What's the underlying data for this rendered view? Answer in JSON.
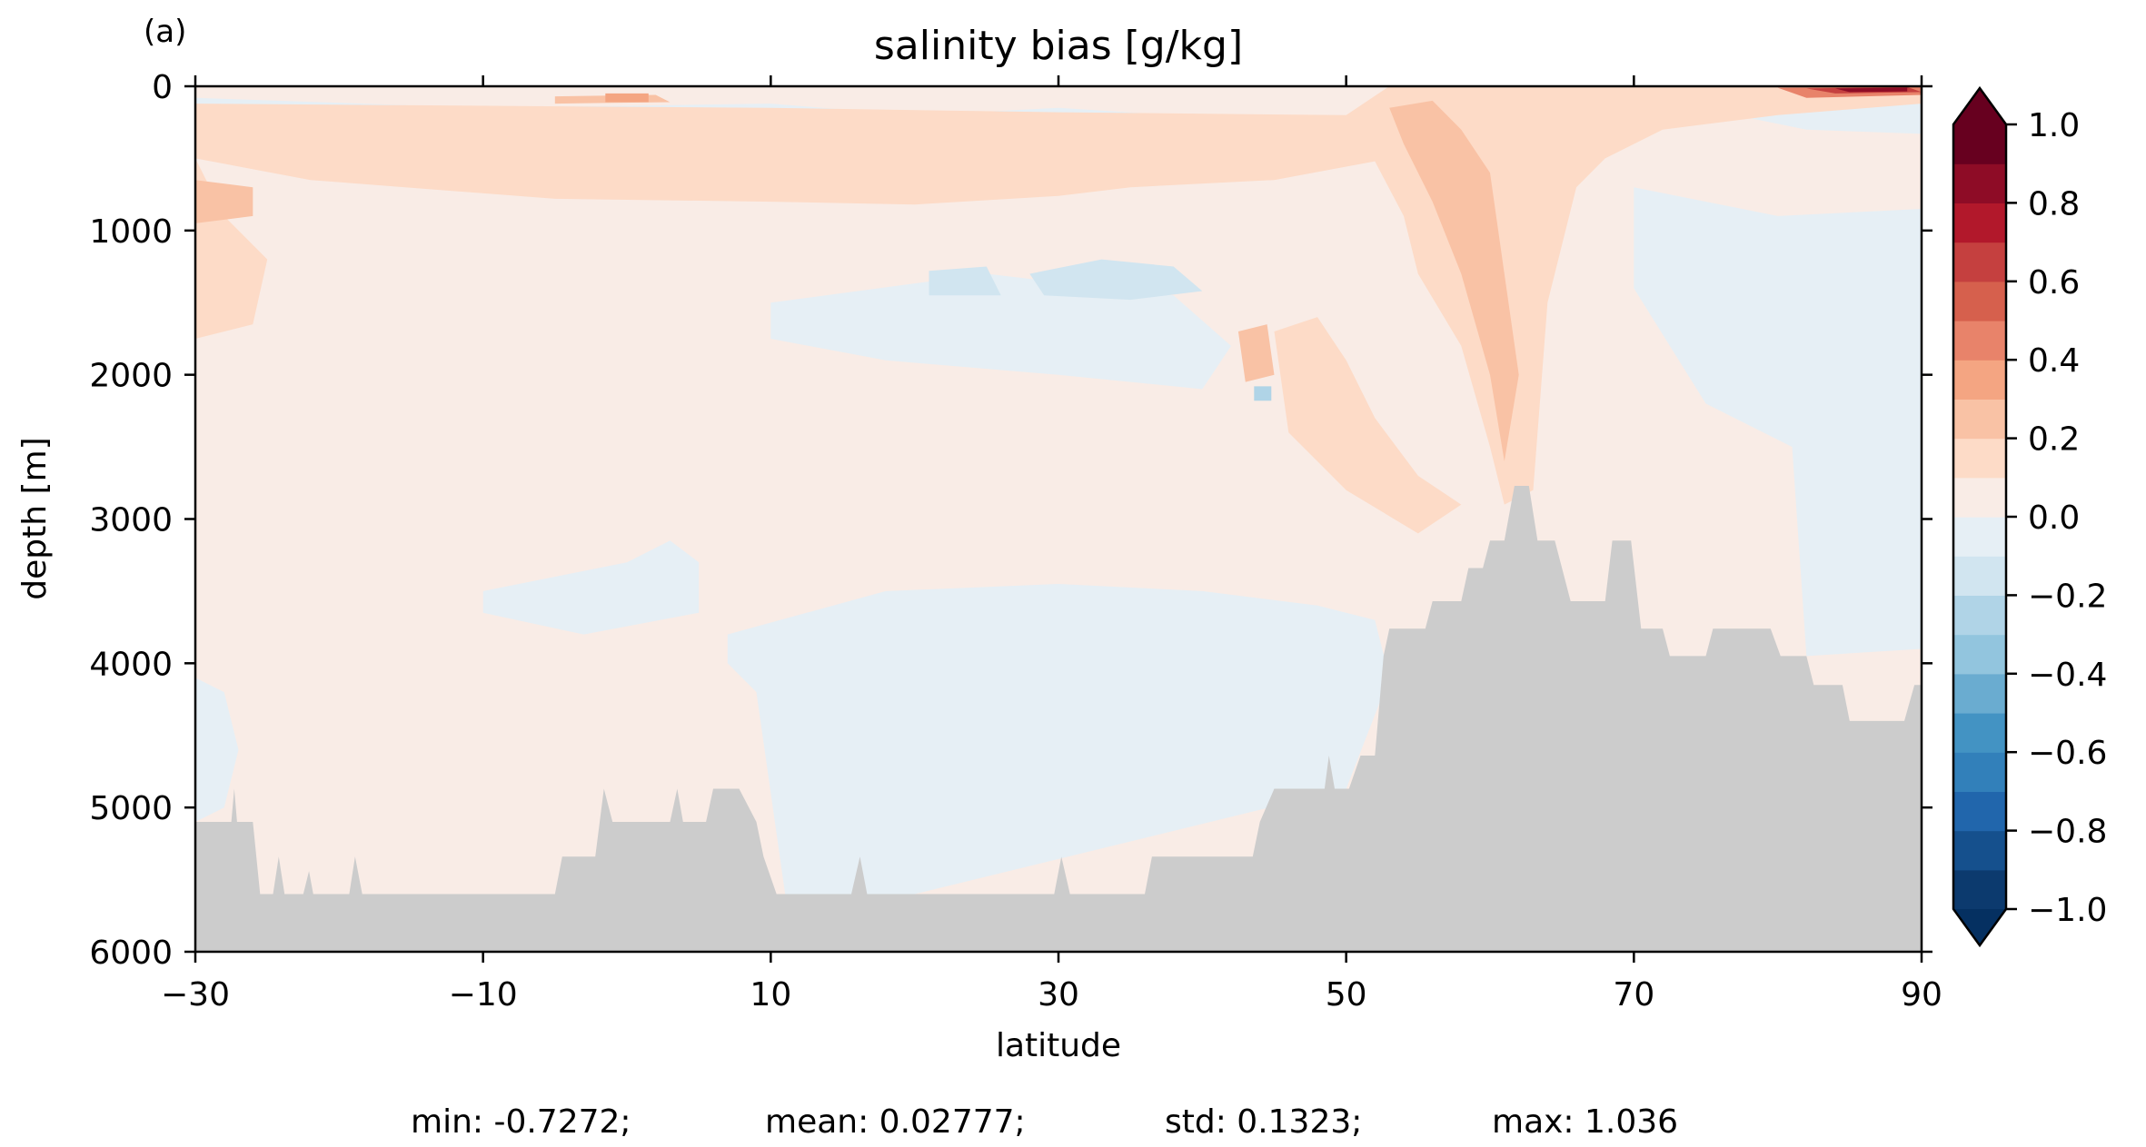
{
  "chart_data": {
    "type": "heatmap",
    "panel_label": "(a)",
    "title": "salinity bias [g/kg]",
    "xlabel": "latitude",
    "ylabel": "depth [m]",
    "xlim": [
      -30,
      90
    ],
    "ylim": [
      6000,
      0
    ],
    "x_ticks": [
      -30,
      -10,
      10,
      30,
      50,
      70,
      90
    ],
    "x_tick_labels": [
      "−30",
      "−10",
      "10",
      "30",
      "50",
      "70",
      "90"
    ],
    "y_ticks": [
      0,
      1000,
      2000,
      3000,
      4000,
      5000,
      6000
    ],
    "y_tick_labels": [
      "0",
      "1000",
      "2000",
      "3000",
      "4000",
      "5000",
      "6000"
    ],
    "colorbar": {
      "cmap": "RdBu_r",
      "extend": "both",
      "levels": [
        -1.0,
        -0.9,
        -0.8,
        -0.7,
        -0.6,
        -0.5,
        -0.4,
        -0.3,
        -0.2,
        -0.1,
        0.0,
        0.1,
        0.2,
        0.3,
        0.4,
        0.5,
        0.6,
        0.7,
        0.8,
        0.9,
        1.0
      ],
      "colors": [
        "#0c3a6e",
        "#15508d",
        "#2166ac",
        "#3280ba",
        "#4393c3",
        "#6aacd0",
        "#92c5de",
        "#b0d4e7",
        "#d1e5f0",
        "#e6eff5",
        "#f9ece6",
        "#fddbc7",
        "#f9c2a5",
        "#f4a582",
        "#e8836a",
        "#d6604d",
        "#c5403f",
        "#b2182b",
        "#8e0c26",
        "#67001f"
      ],
      "over_color": "#67001f",
      "under_color": "#053061",
      "ticks": [
        -1.0,
        -0.8,
        -0.6,
        -0.4,
        -0.2,
        0.0,
        0.2,
        0.4,
        0.6,
        0.8,
        1.0
      ],
      "tick_labels": [
        "−1.0",
        "−0.8",
        "−0.6",
        "−0.4",
        "−0.2",
        "0.0",
        "0.2",
        "0.4",
        "0.6",
        "0.8",
        "1.0"
      ]
    },
    "land_color": "#cccccc",
    "bathymetry": [
      [
        -30,
        5100
      ],
      [
        -27.5,
        5100
      ],
      [
        -27.3,
        4870
      ],
      [
        -27.1,
        5100
      ],
      [
        -26,
        5100
      ],
      [
        -25.5,
        5600
      ],
      [
        -24.6,
        5600
      ],
      [
        -24.2,
        5340
      ],
      [
        -23.8,
        5600
      ],
      [
        -22.5,
        5600
      ],
      [
        -22.1,
        5440
      ],
      [
        -21.8,
        5600
      ],
      [
        -19.3,
        5600
      ],
      [
        -18.9,
        5340
      ],
      [
        -18.4,
        5600
      ],
      [
        -5,
        5600
      ],
      [
        -4.5,
        5340
      ],
      [
        -2.2,
        5340
      ],
      [
        -1.6,
        4870
      ],
      [
        -1.0,
        5100
      ],
      [
        3.0,
        5100
      ],
      [
        3.5,
        4870
      ],
      [
        3.9,
        5100
      ],
      [
        5.5,
        5100
      ],
      [
        6.0,
        4870
      ],
      [
        7.8,
        4870
      ],
      [
        9.0,
        5100
      ],
      [
        9.5,
        5340
      ],
      [
        10.4,
        5600
      ],
      [
        15.6,
        5600
      ],
      [
        16.2,
        5340
      ],
      [
        16.7,
        5600
      ],
      [
        29.7,
        5600
      ],
      [
        30.2,
        5340
      ],
      [
        30.8,
        5600
      ],
      [
        36.0,
        5600
      ],
      [
        36.5,
        5340
      ],
      [
        43.5,
        5340
      ],
      [
        44.0,
        5100
      ],
      [
        45.0,
        4870
      ],
      [
        48.5,
        4870
      ],
      [
        48.8,
        4640
      ],
      [
        49.2,
        4870
      ],
      [
        50.2,
        4870
      ],
      [
        51.0,
        4640
      ],
      [
        52.0,
        4640
      ],
      [
        52.6,
        3950
      ],
      [
        53.0,
        3760
      ],
      [
        55.5,
        3760
      ],
      [
        56.0,
        3570
      ],
      [
        58.0,
        3570
      ],
      [
        58.5,
        3340
      ],
      [
        59.5,
        3340
      ],
      [
        60.0,
        3150
      ],
      [
        61.0,
        3150
      ],
      [
        61.7,
        2770
      ],
      [
        62.7,
        2770
      ],
      [
        63.3,
        3150
      ],
      [
        64.5,
        3150
      ],
      [
        65.0,
        3340
      ],
      [
        65.6,
        3570
      ],
      [
        68.0,
        3570
      ],
      [
        68.5,
        3150
      ],
      [
        69.8,
        3150
      ],
      [
        70.5,
        3760
      ],
      [
        72.0,
        3760
      ],
      [
        72.5,
        3950
      ],
      [
        75.0,
        3950
      ],
      [
        75.5,
        3760
      ],
      [
        79.5,
        3760
      ],
      [
        80.2,
        3950
      ],
      [
        82.0,
        3950
      ],
      [
        82.5,
        4150
      ],
      [
        84.5,
        4150
      ],
      [
        85.0,
        4400
      ],
      [
        88.8,
        4400
      ],
      [
        89.5,
        4150
      ],
      [
        90.0,
        4150
      ]
    ],
    "field_regions": [
      {
        "level": 0.05,
        "points": [
          [
            -30,
            450
          ],
          [
            -20,
            600
          ],
          [
            0,
            800
          ],
          [
            20,
            850
          ],
          [
            35,
            700
          ],
          [
            45,
            600
          ],
          [
            52,
            500
          ],
          [
            55,
            1600
          ],
          [
            53,
            2500
          ],
          [
            55,
            2900
          ],
          [
            58,
            3300
          ],
          [
            60,
            3200
          ],
          [
            62,
            2700
          ],
          [
            64,
            3000
          ],
          [
            66,
            3500
          ],
          [
            70,
            3100
          ],
          [
            74,
            3700
          ],
          [
            78,
            3600
          ],
          [
            80,
            2000
          ],
          [
            90,
            1900
          ],
          [
            90,
            6000
          ],
          [
            -30,
            6000
          ]
        ]
      },
      {
        "level": -0.05,
        "points": [
          [
            -30,
            4100
          ],
          [
            -28,
            4200
          ],
          [
            -27,
            4600
          ],
          [
            -28,
            5000
          ],
          [
            -30,
            5100
          ]
        ]
      },
      {
        "level": -0.05,
        "points": [
          [
            -10,
            3500
          ],
          [
            0,
            3300
          ],
          [
            3,
            3150
          ],
          [
            5,
            3300
          ],
          [
            5,
            3650
          ],
          [
            -3,
            3800
          ],
          [
            -10,
            3650
          ]
        ]
      },
      {
        "level": -0.05,
        "points": [
          [
            7,
            3800
          ],
          [
            18,
            3500
          ],
          [
            30,
            3450
          ],
          [
            40,
            3500
          ],
          [
            48,
            3600
          ],
          [
            52,
            3700
          ],
          [
            53,
            4100
          ],
          [
            50,
            4870
          ],
          [
            20,
            5600
          ],
          [
            11,
            5600
          ],
          [
            9,
            4200
          ],
          [
            7,
            4000
          ]
        ]
      },
      {
        "level": -0.05,
        "points": [
          [
            10,
            1500
          ],
          [
            25,
            1300
          ],
          [
            38,
            1450
          ],
          [
            42,
            1800
          ],
          [
            40,
            2100
          ],
          [
            30,
            2000
          ],
          [
            18,
            1900
          ],
          [
            10,
            1750
          ]
        ]
      },
      {
        "level": -0.05,
        "points": [
          [
            -30,
            80
          ],
          [
            -10,
            150
          ],
          [
            10,
            120
          ],
          [
            20,
            200
          ],
          [
            30,
            150
          ],
          [
            38,
            200
          ],
          [
            42,
            380
          ],
          [
            30,
            420
          ],
          [
            10,
            380
          ],
          [
            -10,
            400
          ],
          [
            -30,
            350
          ]
        ]
      },
      {
        "level": -0.05,
        "points": [
          [
            70,
            700
          ],
          [
            80,
            900
          ],
          [
            90,
            850
          ],
          [
            90,
            3900
          ],
          [
            82,
            3950
          ],
          [
            81,
            2500
          ],
          [
            75,
            2200
          ],
          [
            70,
            1400
          ]
        ]
      },
      {
        "level": -0.05,
        "points": [
          [
            78,
            130
          ],
          [
            90,
            120
          ],
          [
            90,
            330
          ],
          [
            82,
            300
          ],
          [
            78,
            220
          ]
        ]
      },
      {
        "level": -0.15,
        "points": [
          [
            14,
            280
          ],
          [
            20,
            220
          ],
          [
            28,
            250
          ],
          [
            34,
            300
          ],
          [
            37,
            420
          ],
          [
            30,
            480
          ],
          [
            20,
            460
          ],
          [
            14,
            400
          ]
        ]
      },
      {
        "level": -0.15,
        "points": [
          [
            28,
            1300
          ],
          [
            33,
            1200
          ],
          [
            38,
            1250
          ],
          [
            40,
            1420
          ],
          [
            35,
            1480
          ],
          [
            29,
            1450
          ]
        ]
      },
      {
        "level": -0.15,
        "points": [
          [
            21,
            1280
          ],
          [
            25,
            1250
          ],
          [
            26,
            1450
          ],
          [
            21,
            1450
          ]
        ]
      },
      {
        "level": -0.25,
        "points": [
          [
            18,
            320
          ],
          [
            25,
            290
          ],
          [
            31,
            320
          ],
          [
            30,
            400
          ],
          [
            20,
            410
          ]
        ]
      },
      {
        "level": -0.25,
        "points": [
          [
            43.6,
            2080
          ],
          [
            44.8,
            2080
          ],
          [
            44.8,
            2180
          ],
          [
            43.6,
            2180
          ]
        ]
      },
      {
        "level": 0.15,
        "points": [
          [
            -30,
            500
          ],
          [
            -22,
            650
          ],
          [
            -5,
            780
          ],
          [
            10,
            800
          ],
          [
            20,
            820
          ],
          [
            30,
            760
          ],
          [
            35,
            700
          ],
          [
            45,
            650
          ],
          [
            52,
            520
          ],
          [
            54,
            900
          ],
          [
            55,
            1300
          ],
          [
            58,
            1800
          ],
          [
            60,
            2500
          ],
          [
            61,
            2900
          ],
          [
            63,
            2800
          ],
          [
            64,
            1500
          ],
          [
            66,
            700
          ],
          [
            68,
            500
          ],
          [
            72,
            300
          ],
          [
            80,
            200
          ],
          [
            90,
            120
          ],
          [
            90,
            0
          ],
          [
            53,
            0
          ],
          [
            50,
            200
          ],
          [
            30,
            180
          ],
          [
            10,
            150
          ],
          [
            -30,
            120
          ],
          [
            -30,
            1750
          ],
          [
            -26,
            1650
          ],
          [
            -25,
            1200
          ],
          [
            -28,
            900
          ]
        ]
      },
      {
        "level": 0.15,
        "points": [
          [
            45,
            1700
          ],
          [
            48,
            1600
          ],
          [
            50,
            1900
          ],
          [
            52,
            2300
          ],
          [
            55,
            2700
          ],
          [
            58,
            2900
          ],
          [
            55,
            3100
          ],
          [
            50,
            2800
          ],
          [
            46,
            2400
          ]
        ]
      },
      {
        "level": 0.25,
        "points": [
          [
            53,
            150
          ],
          [
            56,
            100
          ],
          [
            58,
            300
          ],
          [
            60,
            600
          ],
          [
            61,
            1300
          ],
          [
            62,
            2000
          ],
          [
            61,
            2600
          ],
          [
            60,
            2000
          ],
          [
            58,
            1300
          ],
          [
            56,
            800
          ],
          [
            54,
            400
          ]
        ]
      },
      {
        "level": 0.25,
        "points": [
          [
            42.5,
            1700
          ],
          [
            44.5,
            1650
          ],
          [
            45,
            2000
          ],
          [
            43,
            2050
          ]
        ]
      },
      {
        "level": 0.25,
        "points": [
          [
            -30,
            650
          ],
          [
            -26,
            700
          ],
          [
            -26,
            900
          ],
          [
            -30,
            950
          ]
        ]
      },
      {
        "level": 0.25,
        "points": [
          [
            -5,
            70
          ],
          [
            2,
            60
          ],
          [
            3,
            110
          ],
          [
            -5,
            120
          ]
        ]
      },
      {
        "level": 0.35,
        "points": [
          [
            -1.5,
            50
          ],
          [
            1.5,
            50
          ],
          [
            1.5,
            110
          ],
          [
            -1.5,
            110
          ]
        ]
      },
      {
        "level": 0.45,
        "points": [
          [
            80,
            10
          ],
          [
            90,
            0
          ],
          [
            90,
            60
          ],
          [
            82,
            80
          ]
        ]
      },
      {
        "level": 0.65,
        "points": [
          [
            82,
            15
          ],
          [
            89,
            5
          ],
          [
            90,
            40
          ],
          [
            84,
            50
          ]
        ]
      },
      {
        "level": 0.85,
        "points": [
          [
            84,
            15
          ],
          [
            89,
            10
          ],
          [
            89,
            35
          ],
          [
            85,
            40
          ]
        ]
      }
    ],
    "stats": {
      "min": "min: -0.7272;",
      "mean": "mean: 0.02777;",
      "std": "std: 0.1323;",
      "max": "max: 1.036"
    }
  }
}
